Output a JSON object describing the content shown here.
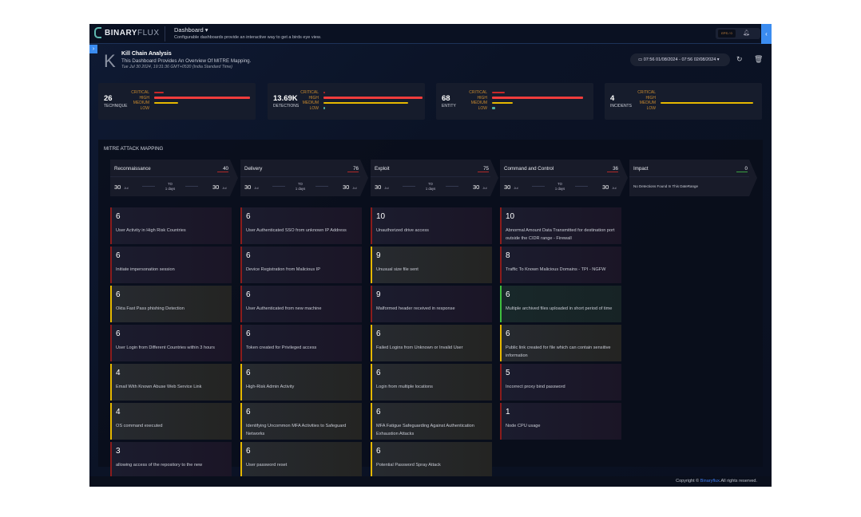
{
  "header": {
    "brand": "BINARYFLUX",
    "brand_bold": "BINARY",
    "brand_light": "FLUX",
    "menu_label": "Dashboard ▾",
    "subtitle": "Configurable dashboards provide an interactive way to get a birds eye view.",
    "eps_label": "EPS / 0"
  },
  "dashboard": {
    "initial": "K",
    "title": "Kill Chain Analysis",
    "description": "This Dashboard Provides An Overview Of MITRE Mapping.",
    "timestamp": "Tue Jul 30 2024, 19:31:36 GMT+0530 (India Standard Time)",
    "date_range": "07:56 01/08/2024 - 07:56 02/08/2024 ▾"
  },
  "levels": [
    "CRITICAL",
    "HIGH",
    "MEDIUM",
    "LOW"
  ],
  "colors": {
    "critical": "#c62828",
    "high": "#f03c3c",
    "medium": "#e6b800",
    "low": "#4fb0a0",
    "accent": "#3b8cf0"
  },
  "stats": [
    {
      "value": "26",
      "label": "TECHNIQUE",
      "bars": [
        0.06,
        0.6,
        0.15,
        0
      ]
    },
    {
      "value": "13.69K",
      "label": "DETECTIONS",
      "bars": [
        0.005,
        0.62,
        0.53,
        0.01
      ]
    },
    {
      "value": "68",
      "label": "ENTITY",
      "bars": [
        0.08,
        0.57,
        0.13,
        0.02
      ]
    },
    {
      "value": "4",
      "label": "INCIDENTS",
      "bars": [
        0,
        0,
        0.58,
        0
      ]
    }
  ],
  "mitre": {
    "title": "MITRE ATTACK MAPPING",
    "stages": [
      {
        "name": "Reconnaissance",
        "count": "40",
        "from": "30",
        "from_month": "Jul",
        "to_label": "TO",
        "duration": "1 days",
        "to": "30",
        "to_month": "Jul"
      },
      {
        "name": "Delivery",
        "count": "76",
        "from": "30",
        "from_month": "Jul",
        "to_label": "TO",
        "duration": "1 days",
        "to": "30",
        "to_month": "Jul"
      },
      {
        "name": "Exploit",
        "count": "75",
        "from": "30",
        "from_month": "Jul",
        "to_label": "TO",
        "duration": "1 days",
        "to": "30",
        "to_month": "Jul"
      },
      {
        "name": "Command and Control",
        "count": "36",
        "from": "30",
        "from_month": "Jul",
        "to_label": "TO",
        "duration": "1 days",
        "to": "30",
        "to_month": "Jul"
      },
      {
        "name": "Impact",
        "count": "0",
        "empty_text": "No Detections Found In This DateRange"
      }
    ],
    "columns": [
      [
        {
          "v": "6",
          "t": "User Activity in High Risk Countries",
          "s": "r"
        },
        {
          "v": "6",
          "t": "Initiate impersonation session",
          "s": "r"
        },
        {
          "v": "6",
          "t": "Okta Fast Pass phishing Detection",
          "s": "y"
        },
        {
          "v": "6",
          "t": "User Login from Different Countries within 3 hours",
          "s": "r"
        },
        {
          "v": "4",
          "t": "Email With Known Abuse Web Service Link",
          "s": "y"
        },
        {
          "v": "4",
          "t": "OS command executed",
          "s": "y"
        },
        {
          "v": "3",
          "t": "allowing access of the repository to the new",
          "s": "r"
        }
      ],
      [
        {
          "v": "6",
          "t": "User Authenticated SSO from unknown IP Address",
          "s": "r"
        },
        {
          "v": "6",
          "t": "Device Registration from Malicious IP",
          "s": "r"
        },
        {
          "v": "6",
          "t": "User Authenticated from new machine",
          "s": "r"
        },
        {
          "v": "6",
          "t": "Token created for Privileged access",
          "s": "r"
        },
        {
          "v": "6",
          "t": "High-Risk Admin Activity",
          "s": "y"
        },
        {
          "v": "6",
          "t": "Identifying Uncommon MFA Activities to Safeguard Networks",
          "s": "y"
        },
        {
          "v": "6",
          "t": "User password reset",
          "s": "y"
        }
      ],
      [
        {
          "v": "10",
          "t": "Unauthorized drive access",
          "s": "r"
        },
        {
          "v": "9",
          "t": "Unusual size file sent",
          "s": "y"
        },
        {
          "v": "9",
          "t": "Malformed header received in response",
          "s": "r"
        },
        {
          "v": "6",
          "t": "Failed Logins from Unknown or Invalid User",
          "s": "y"
        },
        {
          "v": "6",
          "t": "Login from multiple locations",
          "s": "y"
        },
        {
          "v": "6",
          "t": "MFA Fatigue Safeguarding Against Authentication Exhaustion Attacks",
          "s": "y"
        },
        {
          "v": "6",
          "t": "Potential Password Spray Attack",
          "s": "y"
        }
      ],
      [
        {
          "v": "10",
          "t": "Abnormal Amount Data Transmitted for destination port outside the CIDR range - Firewall",
          "s": "r"
        },
        {
          "v": "8",
          "t": "Traffic To Known Malicious Domains - TPI - NGFW",
          "s": "r"
        },
        {
          "v": "6",
          "t": "Multiple archived files uploaded in short period of time",
          "s": "g"
        },
        {
          "v": "6",
          "t": "Public link created for file which can contain sensitive information",
          "s": "y"
        },
        {
          "v": "5",
          "t": "Incorrect proxy bind password",
          "s": "r"
        },
        {
          "v": "1",
          "t": "Node CPU usage",
          "s": "r"
        }
      ]
    ]
  },
  "footer": {
    "prefix": "Copyright ©",
    "brand": "Binaryflux",
    "suffix": ".All rights reserved."
  }
}
